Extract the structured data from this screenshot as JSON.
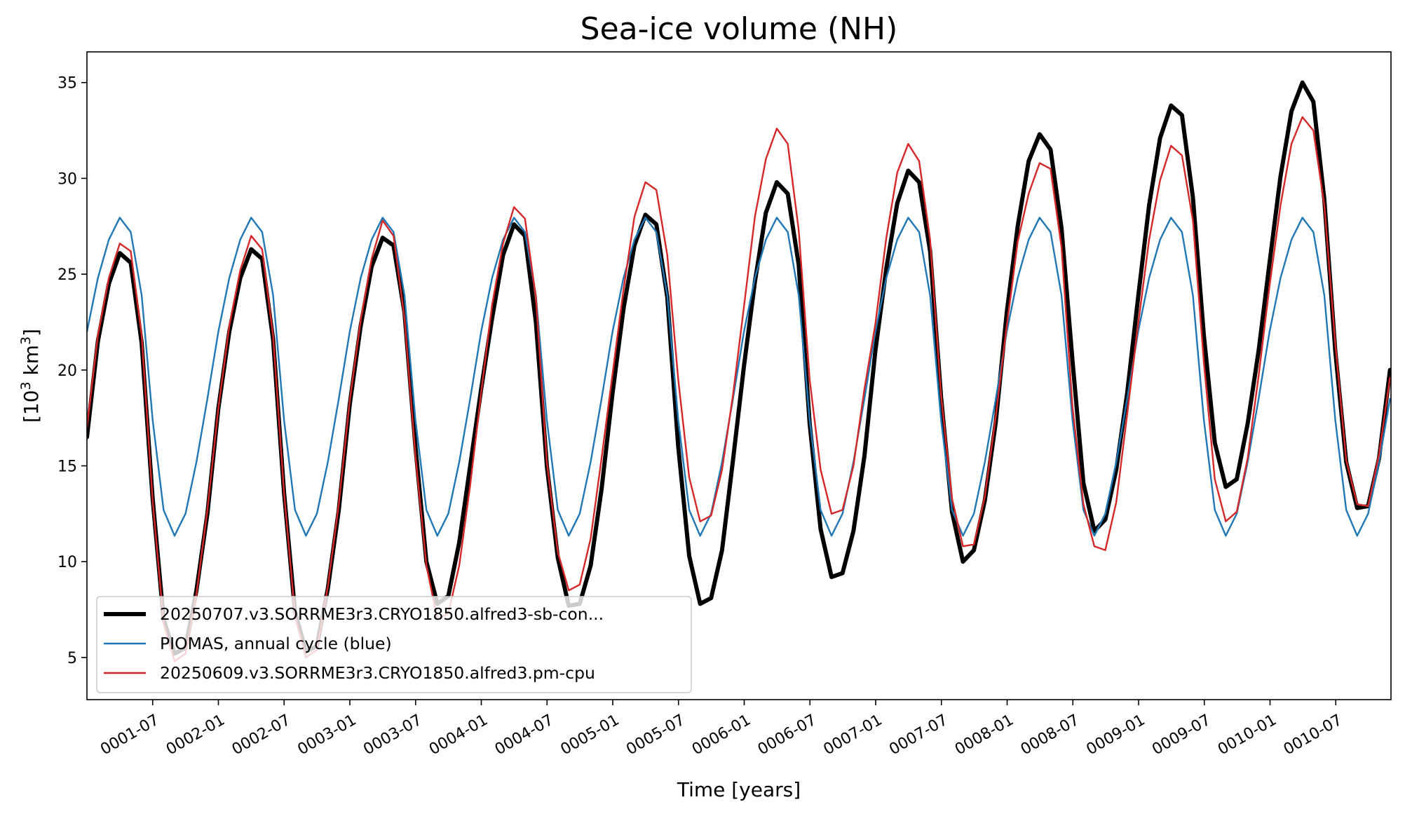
{
  "chart_data": {
    "type": "line",
    "title": "Sea-ice volume (NH)",
    "xlabel": "Time [years]",
    "ylabel": {
      "prefix": "[10",
      "sup1": "3",
      "mid": " km",
      "sup2": "3",
      "suffix": "]"
    },
    "xlim": [
      0.0,
      9.92
    ],
    "ylim": [
      2.8,
      36.6
    ],
    "x_unit": "years since start of simulation",
    "x_ticks": [
      {
        "pos": 0.5,
        "label": "0001-07"
      },
      {
        "pos": 1.0,
        "label": "0002-01"
      },
      {
        "pos": 1.5,
        "label": "0002-07"
      },
      {
        "pos": 2.0,
        "label": "0003-01"
      },
      {
        "pos": 2.5,
        "label": "0003-07"
      },
      {
        "pos": 3.0,
        "label": "0004-01"
      },
      {
        "pos": 3.5,
        "label": "0004-07"
      },
      {
        "pos": 4.0,
        "label": "0005-01"
      },
      {
        "pos": 4.5,
        "label": "0005-07"
      },
      {
        "pos": 5.0,
        "label": "0006-01"
      },
      {
        "pos": 5.5,
        "label": "0006-07"
      },
      {
        "pos": 6.0,
        "label": "0007-01"
      },
      {
        "pos": 6.5,
        "label": "0007-07"
      },
      {
        "pos": 7.0,
        "label": "0008-01"
      },
      {
        "pos": 7.5,
        "label": "0008-07"
      },
      {
        "pos": 8.0,
        "label": "0009-01"
      },
      {
        "pos": 8.5,
        "label": "0009-07"
      },
      {
        "pos": 9.0,
        "label": "0010-01"
      },
      {
        "pos": 9.5,
        "label": "0010-07"
      }
    ],
    "y_ticks": [
      5,
      10,
      15,
      20,
      25,
      30,
      35
    ],
    "legend_position": "lower-left",
    "grid": false,
    "series": [
      {
        "name": "20250707.v3.SORRME3r3.CRYO1850.alfred3-sb-con...",
        "color": "#000000",
        "line_width": "thick",
        "x_start": 0.0,
        "x_step": 0.0833,
        "values": [
          16.5,
          21.5,
          24.5,
          26.1,
          25.6,
          21.4,
          13.3,
          7.0,
          5.2,
          5.5,
          8.5,
          12.5,
          18.0,
          22.0,
          24.8,
          26.3,
          25.8,
          21.6,
          13.6,
          7.4,
          5.3,
          5.6,
          8.6,
          12.7,
          18.2,
          22.3,
          25.4,
          26.9,
          26.5,
          23.0,
          16.0,
          10.0,
          7.8,
          8.2,
          11.0,
          15.0,
          19.0,
          22.7,
          26.0,
          27.6,
          27.0,
          22.5,
          15.0,
          10.2,
          7.7,
          7.8,
          9.8,
          13.8,
          18.8,
          23.2,
          26.5,
          28.1,
          27.6,
          23.8,
          16.0,
          10.3,
          7.8,
          8.1,
          10.6,
          15.3,
          20.2,
          24.6,
          28.2,
          29.8,
          29.2,
          25.5,
          17.2,
          11.7,
          9.2,
          9.4,
          11.6,
          15.5,
          21.0,
          25.3,
          28.7,
          30.4,
          29.8,
          26.2,
          18.6,
          12.6,
          10.0,
          10.6,
          13.2,
          17.3,
          23.0,
          27.5,
          30.9,
          32.3,
          31.5,
          27.4,
          20.5,
          14.1,
          11.6,
          12.2,
          14.8,
          18.8,
          23.8,
          28.6,
          32.1,
          33.8,
          33.3,
          29.0,
          21.8,
          16.2,
          13.9,
          14.3,
          17.2,
          21.0,
          25.6,
          30.1,
          33.5,
          35.0,
          34.0,
          28.9,
          21.0,
          15.2,
          12.8,
          12.9,
          15.4,
          20.0
        ]
      },
      {
        "name": "PIOMAS, annual cycle (blue)",
        "color": "#1f77b4",
        "line_width": "thin",
        "x_start": 0.0,
        "x_step": 0.0833,
        "values": [
          22.0,
          24.8,
          26.8,
          27.95,
          27.2,
          23.9,
          17.4,
          12.7,
          11.35,
          12.5,
          15.2,
          18.5,
          22.0,
          24.8,
          26.8,
          27.95,
          27.2,
          23.9,
          17.4,
          12.7,
          11.35,
          12.5,
          15.2,
          18.5,
          22.0,
          24.8,
          26.8,
          27.95,
          27.2,
          23.9,
          17.4,
          12.7,
          11.35,
          12.5,
          15.2,
          18.5,
          22.0,
          24.8,
          26.8,
          27.95,
          27.2,
          23.9,
          17.4,
          12.7,
          11.35,
          12.5,
          15.2,
          18.5,
          22.0,
          24.8,
          26.8,
          27.95,
          27.2,
          23.9,
          17.4,
          12.7,
          11.35,
          12.5,
          15.2,
          18.5,
          22.0,
          24.8,
          26.8,
          27.95,
          27.2,
          23.9,
          17.4,
          12.7,
          11.35,
          12.5,
          15.2,
          18.5,
          22.0,
          24.8,
          26.8,
          27.95,
          27.2,
          23.9,
          17.4,
          12.7,
          11.35,
          12.5,
          15.2,
          18.5,
          22.0,
          24.8,
          26.8,
          27.95,
          27.2,
          23.9,
          17.4,
          12.7,
          11.35,
          12.5,
          15.2,
          18.5,
          22.0,
          24.8,
          26.8,
          27.95,
          27.2,
          23.9,
          17.4,
          12.7,
          11.35,
          12.5,
          15.2,
          18.5,
          22.0,
          24.8,
          26.8,
          27.95,
          27.2,
          23.9,
          17.4,
          12.7,
          11.35,
          12.5,
          15.2,
          18.5
        ]
      },
      {
        "name": "20250609.v3.SORRME3r3.CRYO1850.alfred3.pm-cpu",
        "color": "#d62728",
        "line_width": "thin",
        "x_start": 0.0,
        "x_step": 0.0833,
        "values": [
          17.0,
          21.8,
          24.8,
          26.6,
          26.2,
          21.8,
          13.2,
          6.8,
          4.8,
          5.2,
          8.3,
          12.7,
          18.0,
          22.3,
          25.2,
          27.0,
          26.3,
          21.8,
          13.6,
          7.2,
          5.0,
          5.4,
          8.7,
          13.0,
          18.4,
          22.6,
          25.8,
          27.8,
          27.0,
          22.7,
          15.5,
          9.8,
          7.0,
          7.3,
          9.8,
          14.0,
          18.8,
          23.4,
          26.6,
          28.5,
          27.9,
          23.8,
          15.2,
          10.5,
          8.5,
          8.8,
          11.2,
          15.4,
          19.8,
          24.2,
          28.0,
          29.8,
          29.4,
          26.0,
          19.5,
          14.4,
          12.1,
          12.4,
          14.8,
          18.7,
          23.3,
          28.0,
          31.0,
          32.6,
          31.8,
          27.3,
          19.5,
          14.8,
          12.5,
          12.7,
          15.0,
          19.0,
          22.4,
          26.9,
          30.3,
          31.8,
          30.9,
          26.8,
          18.7,
          13.3,
          10.8,
          10.9,
          13.4,
          17.6,
          22.3,
          26.7,
          29.2,
          30.8,
          30.5,
          26.4,
          18.1,
          13.0,
          10.8,
          10.6,
          13.1,
          17.7,
          22.4,
          26.8,
          29.9,
          31.7,
          31.2,
          27.8,
          20.4,
          14.3,
          12.1,
          12.6,
          15.4,
          19.7,
          24.4,
          28.6,
          31.8,
          33.2,
          32.5,
          28.6,
          21.4,
          15.3,
          13.0,
          12.9,
          15.6,
          19.6
        ]
      }
    ]
  }
}
